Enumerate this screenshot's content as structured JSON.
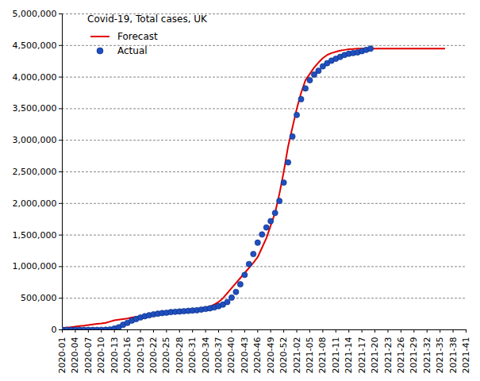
{
  "chart_data": {
    "type": "line",
    "title": "Covid-19, Total cases, UK",
    "categories": [
      "2020-01",
      null,
      null,
      "2020-04",
      null,
      null,
      "2020-07",
      null,
      null,
      "2020-10",
      null,
      null,
      "2020-13",
      null,
      null,
      "2020-16",
      null,
      null,
      "2020-19",
      null,
      null,
      "2020-22",
      null,
      null,
      "2020-25",
      null,
      null,
      "2020-28",
      null,
      null,
      "2020-31",
      null,
      null,
      "2020-34",
      null,
      null,
      "2020-37",
      null,
      null,
      "2020-40",
      null,
      null,
      "2020-43",
      null,
      null,
      "2020-46",
      null,
      null,
      "2020-49",
      null,
      null,
      "2020-52",
      null,
      null,
      "2021-02",
      null,
      null,
      "2021-05",
      null,
      null,
      "2021-08",
      null,
      null,
      "2021-11",
      null,
      null,
      "2021-14",
      null,
      null,
      "2021-17",
      null,
      null,
      "2021-20",
      null,
      null,
      "2021-23",
      null,
      null,
      "2021-26",
      null,
      null,
      "2021-29",
      null,
      null,
      "2021-32",
      null,
      null,
      "2021-35",
      null,
      null,
      "2021-38",
      null,
      null,
      "2021-41"
    ],
    "series": [
      {
        "name": "Forecast",
        "type": "line",
        "color": "#e00000",
        "values": [
          30000,
          35000,
          40000,
          50000,
          60000,
          65000,
          75000,
          85000,
          95000,
          100000,
          110000,
          130000,
          150000,
          160000,
          170000,
          180000,
          195000,
          205000,
          215000,
          225000,
          235000,
          245000,
          255000,
          265000,
          275000,
          285000,
          290000,
          300000,
          305000,
          310000,
          320000,
          330000,
          340000,
          350000,
          370000,
          400000,
          440000,
          500000,
          580000,
          660000,
          740000,
          820000,
          900000,
          980000,
          1060000,
          1150000,
          1300000,
          1450000,
          1650000,
          1850000,
          2150000,
          2500000,
          2900000,
          3200000,
          3500000,
          3750000,
          3950000,
          4050000,
          4150000,
          4230000,
          4300000,
          4350000,
          4380000,
          4400000,
          4420000,
          4430000,
          4440000,
          4445000,
          4450000,
          4450000,
          4450000,
          4450000,
          4450000,
          4450000,
          4450000,
          4450000,
          4450000,
          4450000,
          4450000,
          4450000,
          4450000,
          4450000,
          4450000,
          4450000,
          4450000,
          4450000,
          4450000,
          4450000,
          4450000,
          null,
          null,
          null,
          null,
          null
        ]
      },
      {
        "name": "Actual",
        "type": "scatter",
        "marker": "circle",
        "color": "#1f4fbf",
        "values": [
          0,
          0,
          0,
          0,
          0,
          0,
          0,
          0,
          0,
          0,
          1000,
          5000,
          20000,
          40000,
          80000,
          110000,
          145000,
          170000,
          195000,
          215000,
          230000,
          245000,
          255000,
          265000,
          270000,
          280000,
          285000,
          290000,
          295000,
          300000,
          305000,
          310000,
          320000,
          330000,
          340000,
          355000,
          375000,
          400000,
          440000,
          510000,
          600000,
          720000,
          870000,
          1040000,
          1200000,
          1380000,
          1510000,
          1620000,
          1720000,
          1850000,
          2040000,
          2330000,
          2650000,
          3060000,
          3400000,
          3650000,
          3820000,
          3950000,
          4040000,
          4100000,
          4170000,
          4220000,
          4260000,
          4290000,
          4320000,
          4350000,
          4370000,
          4380000,
          4390000,
          4410000,
          4430000,
          4450000,
          null,
          null,
          null,
          null,
          null,
          null,
          null,
          null,
          null,
          null,
          null,
          null,
          null,
          null,
          null,
          null,
          null,
          null,
          null,
          null,
          null,
          null
        ]
      }
    ],
    "ylim": [
      0,
      5000000
    ],
    "yticks": [
      0,
      {
        "value": 500000,
        "label": "500,000"
      },
      {
        "value": 1000000,
        "label": "1,000,000"
      },
      {
        "value": 1500000,
        "label": "1,500,000"
      },
      {
        "value": 2000000,
        "label": "2,000,000"
      },
      {
        "value": 2500000,
        "label": "2,500,000"
      },
      {
        "value": 3000000,
        "label": "3,000,000"
      },
      {
        "value": 3500000,
        "label": "3,500,000"
      },
      {
        "value": 4000000,
        "label": "4,000,000"
      },
      {
        "value": 4500000,
        "label": "4,500,000"
      },
      {
        "value": 5000000,
        "label": "5,000,000"
      }
    ],
    "grid": true,
    "legend": "top-left"
  }
}
